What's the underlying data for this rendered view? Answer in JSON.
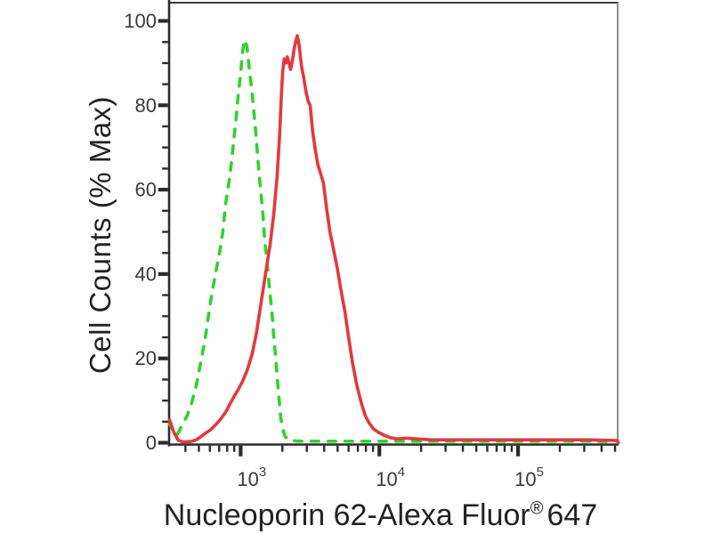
{
  "figure": {
    "background_color": "#ffffff",
    "axis_color": "#2b2b2b",
    "frame_right_color": "#8f8f8f",
    "text_color": "#222222",
    "tick_label_color": "#3a3a3a"
  },
  "chart_data": {
    "type": "line",
    "subtype": "flow-cytometry-histogram-overlay",
    "title": "",
    "xlabel": {
      "main": "Nucleoporin 62-Alexa Fluor",
      "registered_mark": "®",
      "suffix": "647"
    },
    "ylabel": "Cell Counts (% Max)",
    "x_scale": "log",
    "xlim": [
      305,
      530000
    ],
    "ylim": [
      0,
      100
    ],
    "grid": false,
    "legend": "none",
    "y_major_ticks": [
      0,
      20,
      40,
      60,
      80,
      100
    ],
    "y_minor_step": 5,
    "x_decade_exponents": [
      3,
      4,
      5
    ],
    "x_decade_label_base": "10",
    "series": [
      {
        "name": "green_dashed_curve",
        "color": "#2fd32f",
        "line_style": "dashed",
        "points": [
          [
            307,
            4.5
          ],
          [
            345,
            1.5
          ],
          [
            383,
            4.5
          ],
          [
            412,
            6.5
          ],
          [
            444,
            9.5
          ],
          [
            478,
            13.5
          ],
          [
            515,
            19
          ],
          [
            554,
            24.5
          ],
          [
            580,
            29
          ],
          [
            614,
            34.5
          ],
          [
            662,
            40.5
          ],
          [
            713,
            46
          ],
          [
            744,
            50
          ],
          [
            778,
            56.5
          ],
          [
            826,
            62
          ],
          [
            863,
            67
          ],
          [
            890,
            71.5
          ],
          [
            929,
            77
          ],
          [
            957,
            82
          ],
          [
            1000,
            87.5
          ],
          [
            1030,
            92.5
          ],
          [
            1065,
            95.5
          ],
          [
            1110,
            94
          ],
          [
            1160,
            88
          ],
          [
            1200,
            84
          ],
          [
            1250,
            78
          ],
          [
            1290,
            73
          ],
          [
            1345,
            65.5
          ],
          [
            1385,
            61
          ],
          [
            1450,
            54
          ],
          [
            1490,
            48
          ],
          [
            1560,
            42
          ],
          [
            1610,
            37
          ],
          [
            1680,
            31
          ],
          [
            1730,
            25.5
          ],
          [
            1760,
            23
          ],
          [
            1830,
            16
          ],
          [
            1860,
            13
          ],
          [
            1915,
            8.5
          ],
          [
            1945,
            6
          ],
          [
            2000,
            3.5
          ],
          [
            2090,
            1.5
          ],
          [
            2200,
            0.7
          ],
          [
            2500,
            0.4
          ],
          [
            4000,
            0.35
          ],
          [
            10000,
            0.35
          ],
          [
            30000,
            0.35
          ],
          [
            100000,
            0.35
          ],
          [
            300000,
            0.35
          ],
          [
            480000,
            0.3
          ]
        ]
      },
      {
        "name": "red_solid_curve",
        "color": "#e5383c",
        "line_style": "solid",
        "points": [
          [
            307,
            5.5
          ],
          [
            330,
            2.5
          ],
          [
            355,
            0.6
          ],
          [
            383,
            0.2
          ],
          [
            440,
            0.3
          ],
          [
            478,
            0.7
          ],
          [
            515,
            1.4
          ],
          [
            554,
            2.2
          ],
          [
            614,
            3.2
          ],
          [
            662,
            4.3
          ],
          [
            713,
            5.5
          ],
          [
            778,
            7.2
          ],
          [
            826,
            8.8
          ],
          [
            890,
            10.8
          ],
          [
            960,
            12.6
          ],
          [
            1030,
            14.5
          ],
          [
            1110,
            17
          ],
          [
            1210,
            21
          ],
          [
            1300,
            26
          ],
          [
            1400,
            33
          ],
          [
            1510,
            40
          ],
          [
            1630,
            47
          ],
          [
            1730,
            54
          ],
          [
            1830,
            63
          ],
          [
            1910,
            73
          ],
          [
            1970,
            83
          ],
          [
            2010,
            88
          ],
          [
            2060,
            91
          ],
          [
            2120,
            90
          ],
          [
            2170,
            91.5
          ],
          [
            2230,
            90
          ],
          [
            2290,
            88.5
          ],
          [
            2360,
            90.5
          ],
          [
            2450,
            94
          ],
          [
            2560,
            96.5
          ],
          [
            2650,
            94
          ],
          [
            2740,
            89.5
          ],
          [
            2850,
            86.5
          ],
          [
            2950,
            83.5
          ],
          [
            3060,
            81
          ],
          [
            3170,
            80
          ],
          [
            3300,
            74
          ],
          [
            3450,
            69.5
          ],
          [
            3600,
            66
          ],
          [
            3800,
            63.5
          ],
          [
            3960,
            61.5
          ],
          [
            4150,
            56
          ],
          [
            4400,
            50
          ],
          [
            4700,
            45.5
          ],
          [
            5000,
            41
          ],
          [
            5300,
            36
          ],
          [
            5650,
            31
          ],
          [
            6000,
            25
          ],
          [
            6400,
            19
          ],
          [
            6900,
            13.5
          ],
          [
            7400,
            9.5
          ],
          [
            7900,
            6.5
          ],
          [
            8400,
            4.8
          ],
          [
            9000,
            3.4
          ],
          [
            9800,
            2.5
          ],
          [
            10800,
            1.8
          ],
          [
            12000,
            1.2
          ],
          [
            13500,
            0.9
          ],
          [
            15500,
            1.1
          ],
          [
            18500,
            0.9
          ],
          [
            24000,
            0.7
          ],
          [
            40000,
            0.7
          ],
          [
            80000,
            0.7
          ],
          [
            150000,
            0.7
          ],
          [
            300000,
            0.7
          ],
          [
            450000,
            0.6
          ],
          [
            520000,
            0.5
          ],
          [
            528000,
            0
          ]
        ]
      }
    ]
  }
}
